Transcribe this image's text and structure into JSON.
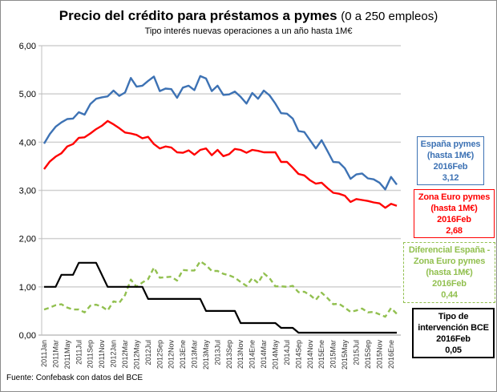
{
  "title": "Precio del crédito para préstamos a pymes",
  "title_paren": "(0 a 250 empleos)",
  "subtitle": "Tipo interés nuevas operaciones a un año hasta 1M€",
  "source": "Fuente: Confebask con datos del BCE",
  "colors": {
    "espana": "#3d72b4",
    "zona_euro": "#ff0000",
    "diferencial": "#92c050",
    "bce": "#000000",
    "grid": "#d0d0d0"
  },
  "labels": {
    "espana": [
      "España pymes",
      "(hasta 1M€)",
      "2016Feb",
      "3,12"
    ],
    "zona_euro": [
      "Zona Euro pymes",
      "(hasta 1M€)",
      "2016Feb",
      "2,68"
    ],
    "diferencial": [
      "Diferencial España -",
      "Zona Euro pymes",
      "(hasta 1M€)",
      "2016Feb",
      "0,44"
    ],
    "bce": [
      "Tipo de",
      "intervención BCE",
      "2016Feb",
      "0,05"
    ]
  },
  "chart_data": {
    "type": "line",
    "title": "Precio del crédito para préstamos a pymes (0 a 250 empleos)",
    "subtitle": "Tipo interés nuevas operaciones a un año hasta 1M€",
    "xlabel": "",
    "ylabel": "",
    "ylim": [
      0,
      6
    ],
    "yticks": [
      "0,00",
      "1,00",
      "2,00",
      "3,00",
      "4,00",
      "5,00",
      "6,00"
    ],
    "grid": true,
    "n_points": 62,
    "xtick_labels": [
      "2011Jan",
      "2011Mar",
      "2011May",
      "2011Jul",
      "2011Sep",
      "2011Nov",
      "2012Jan",
      "2012Mar",
      "2012May",
      "2012Jul",
      "2012Sep",
      "2012Nov",
      "2013Ene",
      "2013Mar",
      "2013May",
      "2013Jul",
      "2013Sep",
      "2013Nov",
      "2014Ene",
      "2014Mar",
      "2014May",
      "2014Jul",
      "2014Sep",
      "2014Nov",
      "2015Ene",
      "2015Mar",
      "2015May",
      "2015Jul",
      "2015Sep",
      "2015Nov",
      "2016Ene"
    ],
    "series": [
      {
        "name": "España pymes (hasta 1M€)",
        "key": "espana",
        "dashed": false,
        "values": [
          3.97,
          4.17,
          4.32,
          4.41,
          4.48,
          4.49,
          4.62,
          4.57,
          4.79,
          4.9,
          4.93,
          4.95,
          5.07,
          4.96,
          5.03,
          5.33,
          5.15,
          5.17,
          5.27,
          5.36,
          5.06,
          5.11,
          5.1,
          4.92,
          5.13,
          5.17,
          5.08,
          5.37,
          5.32,
          5.06,
          5.17,
          4.98,
          4.99,
          5.05,
          4.94,
          4.8,
          5.02,
          4.9,
          5.07,
          4.97,
          4.8,
          4.6,
          4.59,
          4.49,
          4.23,
          4.21,
          4.04,
          3.87,
          4.04,
          3.82,
          3.59,
          3.58,
          3.46,
          3.24,
          3.33,
          3.35,
          3.25,
          3.23,
          3.16,
          3.02,
          3.28,
          3.12
        ]
      },
      {
        "name": "Zona Euro pymes (hasta 1M€)",
        "key": "zona_euro",
        "dashed": false,
        "values": [
          3.44,
          3.6,
          3.7,
          3.77,
          3.91,
          3.96,
          4.09,
          4.1,
          4.18,
          4.27,
          4.34,
          4.44,
          4.37,
          4.29,
          4.2,
          4.18,
          4.15,
          4.08,
          4.11,
          3.96,
          3.87,
          3.91,
          3.89,
          3.79,
          3.78,
          3.83,
          3.74,
          3.84,
          3.87,
          3.73,
          3.84,
          3.71,
          3.75,
          3.86,
          3.84,
          3.78,
          3.84,
          3.82,
          3.79,
          3.79,
          3.79,
          3.59,
          3.59,
          3.47,
          3.34,
          3.31,
          3.21,
          3.14,
          3.16,
          3.05,
          2.95,
          2.93,
          2.89,
          2.76,
          2.82,
          2.8,
          2.78,
          2.75,
          2.73,
          2.64,
          2.72,
          2.68
        ]
      },
      {
        "name": "Diferencial España - Zona Euro pymes (hasta 1M€)",
        "key": "diferencial",
        "dashed": true,
        "values": [
          0.53,
          0.57,
          0.62,
          0.64,
          0.57,
          0.53,
          0.53,
          0.47,
          0.61,
          0.63,
          0.59,
          0.51,
          0.7,
          0.67,
          0.83,
          1.15,
          1.0,
          1.09,
          1.16,
          1.4,
          1.19,
          1.2,
          1.21,
          1.13,
          1.35,
          1.34,
          1.34,
          1.53,
          1.45,
          1.33,
          1.33,
          1.27,
          1.24,
          1.19,
          1.1,
          1.02,
          1.18,
          1.08,
          1.28,
          1.18,
          1.01,
          1.01,
          1.0,
          1.02,
          0.89,
          0.9,
          0.83,
          0.73,
          0.88,
          0.77,
          0.64,
          0.65,
          0.57,
          0.48,
          0.51,
          0.55,
          0.47,
          0.48,
          0.43,
          0.38,
          0.56,
          0.44
        ]
      },
      {
        "name": "Tipo de intervención BCE",
        "key": "bce",
        "dashed": false,
        "values": [
          1.0,
          1.0,
          1.0,
          1.25,
          1.25,
          1.25,
          1.5,
          1.5,
          1.5,
          1.5,
          1.25,
          1.0,
          1.0,
          1.0,
          1.0,
          1.0,
          1.0,
          1.0,
          0.75,
          0.75,
          0.75,
          0.75,
          0.75,
          0.75,
          0.75,
          0.75,
          0.75,
          0.75,
          0.5,
          0.5,
          0.5,
          0.5,
          0.5,
          0.5,
          0.25,
          0.25,
          0.25,
          0.25,
          0.25,
          0.25,
          0.25,
          0.15,
          0.15,
          0.15,
          0.05,
          0.05,
          0.05,
          0.05,
          0.05,
          0.05,
          0.05,
          0.05,
          0.05,
          0.05,
          0.05,
          0.05,
          0.05,
          0.05,
          0.05,
          0.05,
          0.05,
          0.05
        ]
      }
    ]
  }
}
